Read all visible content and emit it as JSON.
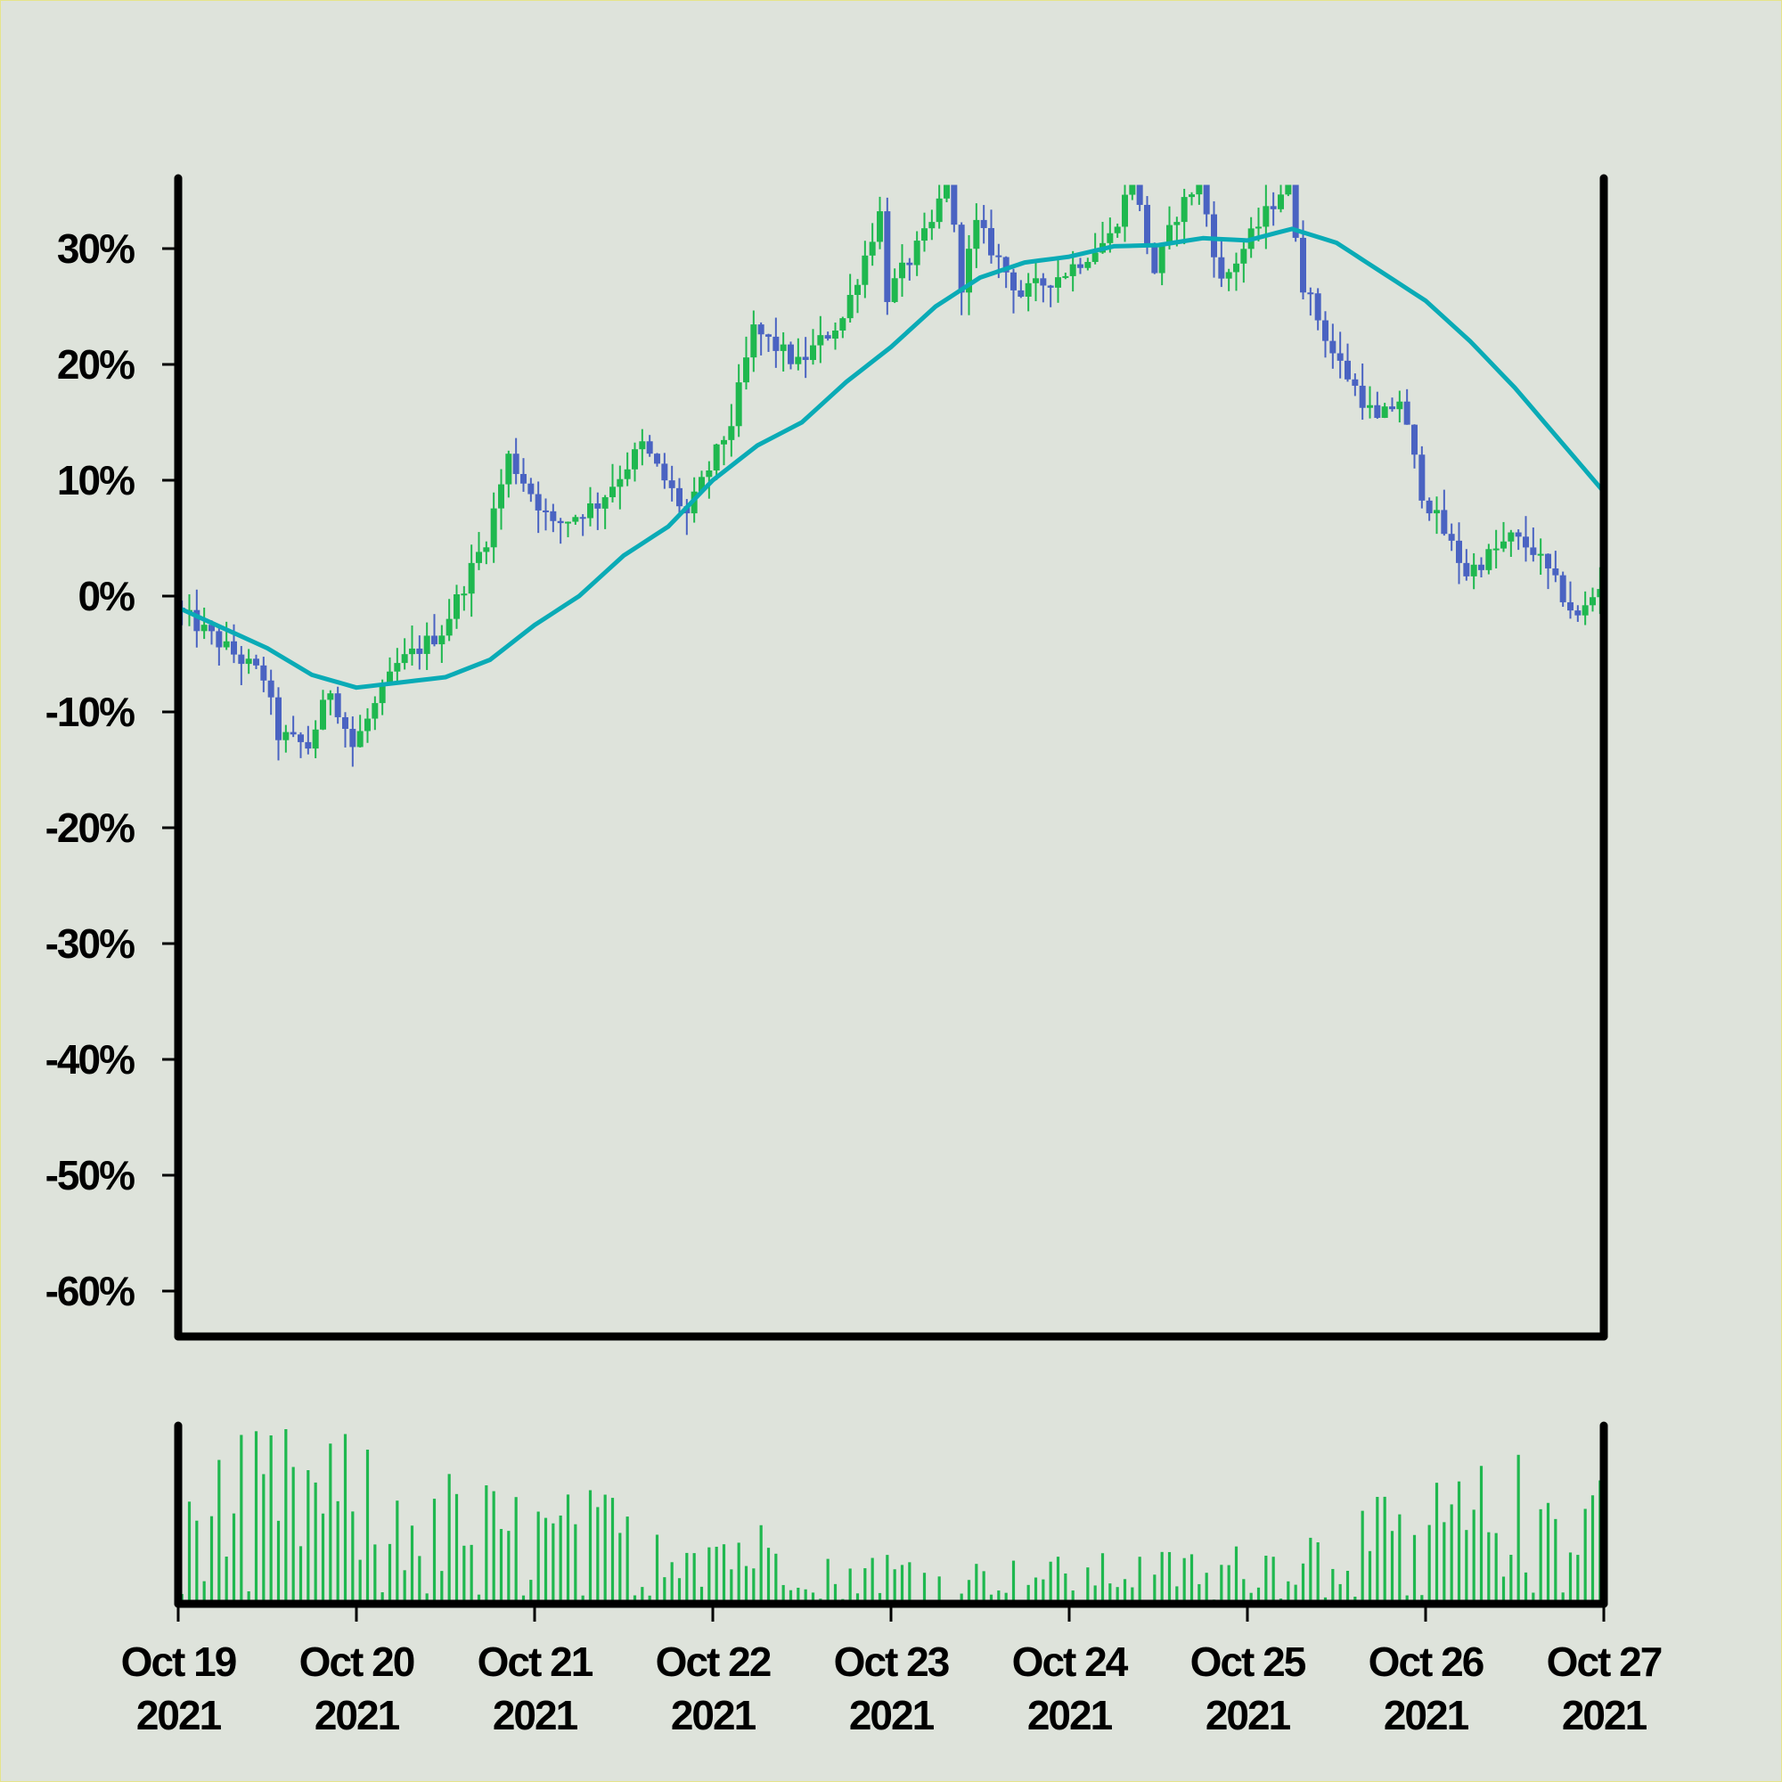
{
  "colors": {
    "background": "#dee3db",
    "border": "#e6e48a",
    "up": "#1fb84f",
    "down": "#4a63c2",
    "moving_average": "#0aabb6",
    "volume": "#1fb84f",
    "axis": "#000000"
  },
  "chart_data": [
    {
      "type": "candlestick",
      "title": "",
      "xlabel": "",
      "ylabel": "",
      "y_unit": "%",
      "ylim": [
        -60.0,
        30.0
      ],
      "y_ticks": [
        30,
        20,
        10,
        0,
        -10,
        -20,
        -30,
        -40,
        -50,
        -60
      ],
      "y_tick_labels": [
        "30%",
        "20%",
        "10%",
        "0%",
        "-10%",
        "-20%",
        "-30%",
        "-40%",
        "-50%",
        "-60%"
      ],
      "x_range": [
        "2021-10-19",
        "2021-10-27"
      ],
      "x_tick_labels": [
        [
          "Oct 19",
          "2021"
        ],
        [
          "Oct 20",
          "2021"
        ],
        [
          "Oct 21",
          "2021"
        ],
        [
          "Oct 22",
          "2021"
        ],
        [
          "Oct 23",
          "2021"
        ],
        [
          "Oct 24",
          "2021"
        ],
        [
          "Oct 25",
          "2021"
        ],
        [
          "Oct 26",
          "2021"
        ],
        [
          "Oct 27",
          "2021"
        ]
      ],
      "grid": false,
      "close_path": [
        [
          "2021-10-19 00:00",
          -1
        ],
        [
          "2021-10-19 06:00",
          -4
        ],
        [
          "2021-10-19 12:00",
          -7
        ],
        [
          "2021-10-19 14:00",
          -12
        ],
        [
          "2021-10-19 18:00",
          -13
        ],
        [
          "2021-10-19 21:00",
          -8
        ],
        [
          "2021-10-20 00:00",
          -13
        ],
        [
          "2021-10-20 06:00",
          -6
        ],
        [
          "2021-10-20 12:00",
          -3
        ],
        [
          "2021-10-20 18:00",
          5
        ],
        [
          "2021-10-20 21:00",
          12
        ],
        [
          "2021-10-21 03:00",
          6
        ],
        [
          "2021-10-21 09:00",
          8
        ],
        [
          "2021-10-21 15:00",
          13
        ],
        [
          "2021-10-21 21:00",
          7
        ],
        [
          "2021-10-22 03:00",
          15
        ],
        [
          "2021-10-22 06:00",
          23
        ],
        [
          "2021-10-22 12:00",
          20
        ],
        [
          "2021-10-22 18:00",
          24
        ],
        [
          "2021-10-22 23:00",
          33
        ],
        [
          "2021-10-23 00:00",
          26
        ],
        [
          "2021-10-23 06:00",
          32
        ],
        [
          "2021-10-23 08:00",
          36
        ],
        [
          "2021-10-23 10:00",
          27
        ],
        [
          "2021-10-23 12:00",
          32
        ],
        [
          "2021-10-23 18:00",
          26
        ],
        [
          "2021-10-24 00:00",
          28
        ],
        [
          "2021-10-24 06:00",
          31
        ],
        [
          "2021-10-24 09:00",
          36
        ],
        [
          "2021-10-24 12:00",
          28
        ],
        [
          "2021-10-24 15:00",
          33
        ],
        [
          "2021-10-24 18:00",
          36
        ],
        [
          "2021-10-24 21:00",
          27
        ],
        [
          "2021-10-25 00:00",
          30
        ],
        [
          "2021-10-25 06:00",
          36
        ],
        [
          "2021-10-25 08:00",
          27
        ],
        [
          "2021-10-25 12:00",
          21
        ],
        [
          "2021-10-25 18:00",
          15
        ],
        [
          "2021-10-25 21:00",
          17
        ],
        [
          "2021-10-26 00:00",
          9
        ],
        [
          "2021-10-26 06:00",
          2
        ],
        [
          "2021-10-26 12:00",
          5
        ],
        [
          "2021-10-26 15:00",
          4
        ],
        [
          "2021-10-26 21:00",
          -2
        ],
        [
          "2021-10-27 00:00",
          1
        ]
      ],
      "moving_average": [
        [
          "2021-10-19 00:00",
          -1.0
        ],
        [
          "2021-10-19 12:00",
          -4.5
        ],
        [
          "2021-10-19 18:00",
          -6.8
        ],
        [
          "2021-10-20 00:00",
          -7.9
        ],
        [
          "2021-10-20 12:00",
          -7.0
        ],
        [
          "2021-10-20 18:00",
          -5.5
        ],
        [
          "2021-10-21 00:00",
          -2.5
        ],
        [
          "2021-10-21 06:00",
          0.0
        ],
        [
          "2021-10-21 12:00",
          3.5
        ],
        [
          "2021-10-21 18:00",
          6.0
        ],
        [
          "2021-10-22 00:00",
          10.0
        ],
        [
          "2021-10-22 06:00",
          13.0
        ],
        [
          "2021-10-22 12:00",
          15.0
        ],
        [
          "2021-10-22 18:00",
          18.5
        ],
        [
          "2021-10-23 00:00",
          21.5
        ],
        [
          "2021-10-23 06:00",
          25.0
        ],
        [
          "2021-10-23 12:00",
          27.5
        ],
        [
          "2021-10-23 18:00",
          28.8
        ],
        [
          "2021-10-24 00:00",
          29.3
        ],
        [
          "2021-10-24 06:00",
          30.2
        ],
        [
          "2021-10-24 12:00",
          30.3
        ],
        [
          "2021-10-24 18:00",
          30.9
        ],
        [
          "2021-10-25 00:00",
          30.7
        ],
        [
          "2021-10-25 06:00",
          31.7
        ],
        [
          "2021-10-25 12:00",
          30.5
        ],
        [
          "2021-10-25 18:00",
          28.0
        ],
        [
          "2021-10-26 00:00",
          25.5
        ],
        [
          "2021-10-26 06:00",
          22.0
        ],
        [
          "2021-10-26 12:00",
          18.0
        ],
        [
          "2021-10-26 18:00",
          13.5
        ],
        [
          "2021-10-27 00:00",
          9.0
        ]
      ]
    },
    {
      "type": "bar",
      "title": "",
      "xlabel": "",
      "ylabel": "",
      "x_range": [
        "2021-10-19",
        "2021-10-27"
      ],
      "y_axis_labels_shown": false,
      "volume_profile": [
        [
          "2021-10-19 00:00",
          0.55
        ],
        [
          "2021-10-19 12:00",
          0.75
        ],
        [
          "2021-10-20 00:00",
          0.68
        ],
        [
          "2021-10-20 12:00",
          0.55
        ],
        [
          "2021-10-21 00:00",
          0.45
        ],
        [
          "2021-10-21 12:00",
          0.48
        ],
        [
          "2021-10-22 00:00",
          0.4
        ],
        [
          "2021-10-22 12:00",
          0.3
        ],
        [
          "2021-10-23 00:00",
          0.22
        ],
        [
          "2021-10-23 12:00",
          0.18
        ],
        [
          "2021-10-24 00:00",
          0.2
        ],
        [
          "2021-10-24 12:00",
          0.22
        ],
        [
          "2021-10-25 00:00",
          0.25
        ],
        [
          "2021-10-25 12:00",
          0.38
        ],
        [
          "2021-10-26 00:00",
          0.5
        ],
        [
          "2021-10-26 12:00",
          0.62
        ],
        [
          "2021-10-27 00:00",
          0.65
        ]
      ]
    }
  ]
}
